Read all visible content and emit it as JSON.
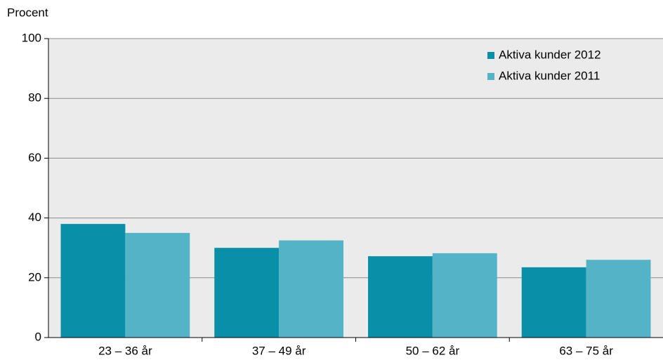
{
  "chart_data": {
    "type": "bar",
    "y_label": "Procent",
    "categories": [
      "23 – 36 år",
      "37 – 49 år",
      "50 – 62 år",
      "63 – 75 år"
    ],
    "series": [
      {
        "name": "Aktiva kunder 2012",
        "color": "#0a8fa8",
        "values": [
          38,
          30,
          27.2,
          23.5
        ]
      },
      {
        "name": "Aktiva kunder 2011",
        "color": "#52b4c6",
        "values": [
          35,
          32.5,
          28.2,
          26
        ]
      }
    ],
    "ylim": [
      0,
      100
    ],
    "yticks": [
      0,
      20,
      40,
      60,
      80,
      100
    ],
    "grid": true,
    "legend": "top-right"
  }
}
